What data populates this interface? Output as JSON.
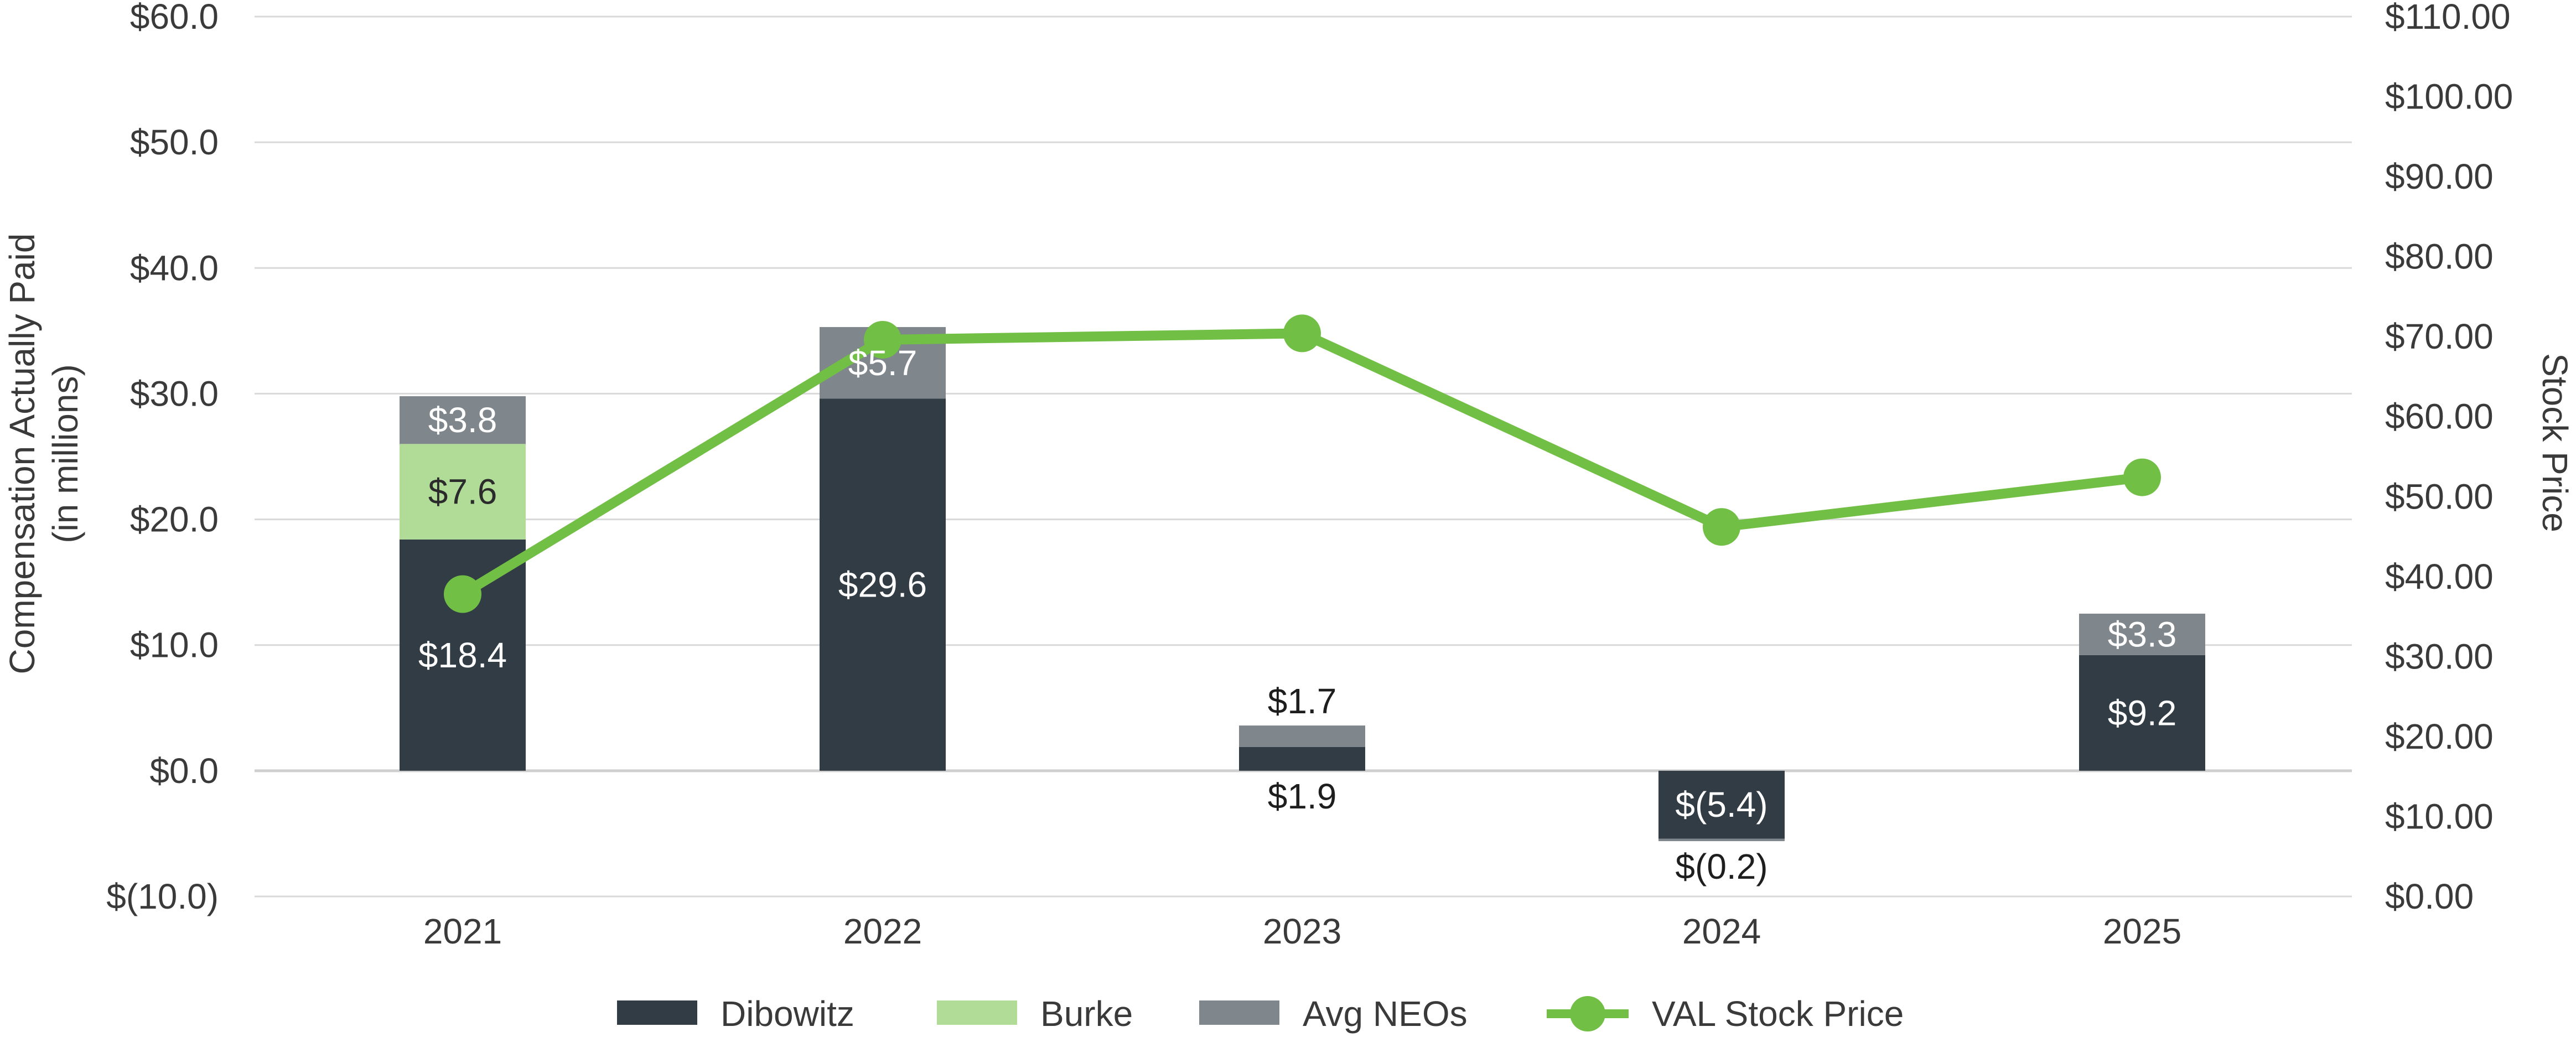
{
  "chart_data": {
    "type": "bar",
    "categories": [
      "2021",
      "2022",
      "2023",
      "2024",
      "2025"
    ],
    "stacked": true,
    "series": [
      {
        "name": "Dibowitz",
        "color": "#313c44",
        "values": [
          18.4,
          29.6,
          1.9,
          -5.4,
          9.2
        ],
        "labels": [
          "$18.4",
          "$29.6",
          "$1.9",
          "$(5.4)",
          "$9.2"
        ]
      },
      {
        "name": "Burke",
        "color": "#b1dc98",
        "values": [
          7.6,
          null,
          null,
          null,
          null
        ],
        "labels": [
          "$7.6",
          "",
          "",
          "",
          ""
        ]
      },
      {
        "name": "Avg NEOs",
        "color": "#7f868c",
        "values": [
          3.8,
          5.7,
          1.7,
          -0.2,
          3.3
        ],
        "labels": [
          "$3.8",
          "$5.7",
          "$1.7",
          "$(0.2)",
          "$3.3"
        ]
      }
    ],
    "line_series": {
      "name": "VAL Stock Price",
      "color": "#71bf45",
      "values": [
        37.8,
        69.6,
        70.4,
        46.2,
        52.4
      ]
    },
    "left_axis": {
      "label_line1": "Compensation Actually Paid",
      "label_line2": "(in millions)",
      "min": -10,
      "max": 60,
      "ticks": [
        -10,
        0,
        10,
        20,
        30,
        40,
        50,
        60
      ],
      "tick_labels": [
        "$(10.0)",
        "$0.0",
        "$10.0",
        "$20.0",
        "$30.0",
        "$40.0",
        "$50.0",
        "$60.0"
      ]
    },
    "right_axis": {
      "label": "Stock Price",
      "min": 0,
      "max": 110,
      "ticks": [
        0,
        10,
        20,
        30,
        40,
        50,
        60,
        70,
        80,
        90,
        100,
        110
      ],
      "tick_labels": [
        "$0.00",
        "$10.00",
        "$20.00",
        "$30.00",
        "$40.00",
        "$50.00",
        "$60.00",
        "$70.00",
        "$80.00",
        "$90.00",
        "$100.00",
        "$110.00"
      ]
    },
    "grid": true,
    "legend_position": "bottom",
    "legend": [
      "Dibowitz",
      "Burke",
      "Avg NEOs",
      "VAL Stock Price"
    ]
  }
}
